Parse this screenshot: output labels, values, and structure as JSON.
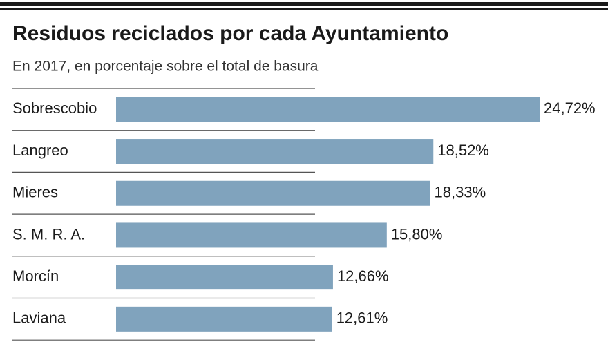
{
  "chart_data": {
    "type": "bar",
    "orientation": "horizontal",
    "title": "Residuos reciclados por cada Ayuntamiento",
    "subtitle": "En 2017, en porcentaje sobre el total de basura",
    "categories": [
      "Sobrescobio",
      "Langreo",
      "Mieres",
      "S. M. R. A.",
      "Morcín",
      "Laviana"
    ],
    "values": [
      24.72,
      18.52,
      18.33,
      15.8,
      12.66,
      12.61
    ],
    "value_labels": [
      "24,72%",
      "18,52%",
      "18,33%",
      "15,80%",
      "12,66%",
      "12,61%"
    ],
    "color": "#80a3bd"
  }
}
